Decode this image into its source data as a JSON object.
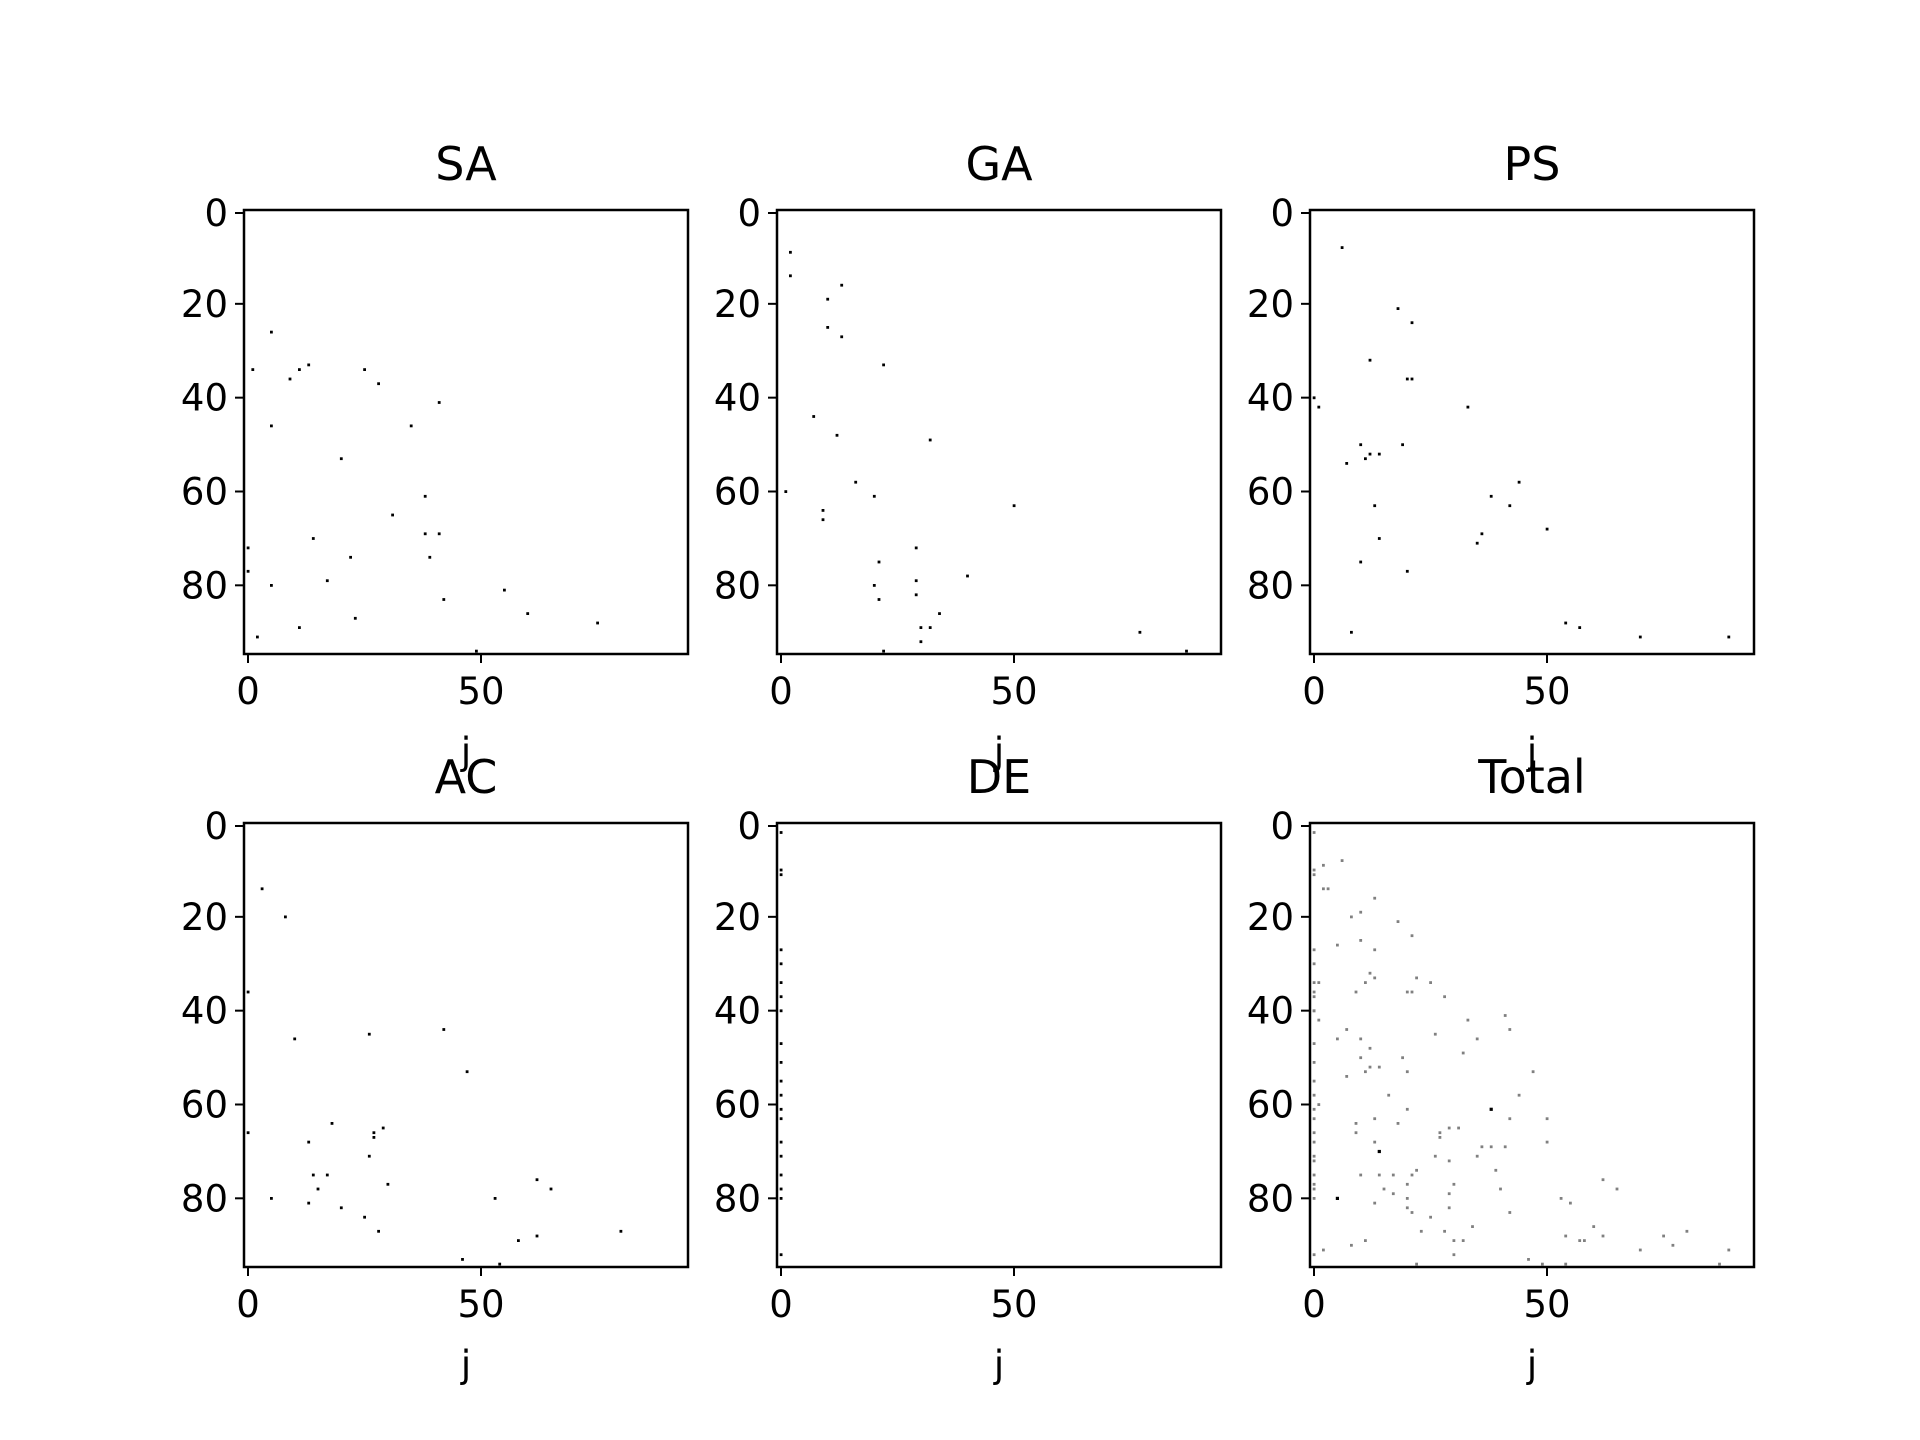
{
  "chart_data": [
    {
      "type": "heatmap",
      "title": "SA",
      "xlabel": "j",
      "ylabel": "",
      "xlim": [
        0,
        94
      ],
      "ylim": [
        94,
        0
      ],
      "xticks": [
        "0",
        "50"
      ],
      "yticks": [
        "0",
        "20",
        "40",
        "60",
        "80"
      ],
      "color": "#000000",
      "points": [
        [
          5,
          26
        ],
        [
          13,
          33
        ],
        [
          11,
          34
        ],
        [
          1,
          34
        ],
        [
          25,
          34
        ],
        [
          9,
          36
        ],
        [
          28,
          37
        ],
        [
          41,
          41
        ],
        [
          5,
          46
        ],
        [
          35,
          46
        ],
        [
          20,
          53
        ],
        [
          38,
          61
        ],
        [
          31,
          65
        ],
        [
          38,
          69
        ],
        [
          41,
          69
        ],
        [
          14,
          70
        ],
        [
          0,
          72
        ],
        [
          39,
          74
        ],
        [
          22,
          74
        ],
        [
          0,
          77
        ],
        [
          5,
          80
        ],
        [
          17,
          79
        ],
        [
          55,
          81
        ],
        [
          42,
          83
        ],
        [
          60,
          86
        ],
        [
          23,
          87
        ],
        [
          75,
          88
        ],
        [
          11,
          89
        ],
        [
          2,
          91
        ],
        [
          49,
          94
        ]
      ]
    },
    {
      "type": "heatmap",
      "title": "GA",
      "xlabel": "j",
      "ylabel": "",
      "xlim": [
        0,
        94
      ],
      "ylim": [
        94,
        0
      ],
      "xticks": [
        "0",
        "50"
      ],
      "yticks": [
        "0",
        "20",
        "40",
        "60",
        "80"
      ],
      "color": "#000000",
      "points": [
        [
          2,
          9
        ],
        [
          2,
          14
        ],
        [
          13,
          16
        ],
        [
          10,
          19
        ],
        [
          10,
          25
        ],
        [
          13,
          27
        ],
        [
          22,
          33
        ],
        [
          7,
          44
        ],
        [
          12,
          48
        ],
        [
          32,
          49
        ],
        [
          16,
          58
        ],
        [
          1,
          60
        ],
        [
          20,
          61
        ],
        [
          50,
          63
        ],
        [
          9,
          64
        ],
        [
          9,
          66
        ],
        [
          29,
          72
        ],
        [
          21,
          75
        ],
        [
          40,
          78
        ],
        [
          29,
          79
        ],
        [
          20,
          80
        ],
        [
          34,
          86
        ],
        [
          21,
          83
        ],
        [
          29,
          82
        ],
        [
          30,
          89
        ],
        [
          32,
          89
        ],
        [
          77,
          90
        ],
        [
          30,
          92
        ],
        [
          22,
          94
        ],
        [
          87,
          94
        ]
      ]
    },
    {
      "type": "heatmap",
      "title": "PS",
      "xlabel": "j",
      "ylabel": "",
      "xlim": [
        0,
        94
      ],
      "ylim": [
        94,
        0
      ],
      "xticks": [
        "0",
        "50"
      ],
      "yticks": [
        "0",
        "20",
        "40",
        "60",
        "80"
      ],
      "color": "#000000",
      "points": [
        [
          6,
          8
        ],
        [
          18,
          21
        ],
        [
          21,
          24
        ],
        [
          12,
          32
        ],
        [
          20,
          36
        ],
        [
          21,
          36
        ],
        [
          0,
          40
        ],
        [
          1,
          42
        ],
        [
          33,
          42
        ],
        [
          10,
          50
        ],
        [
          19,
          50
        ],
        [
          14,
          52
        ],
        [
          11,
          53
        ],
        [
          12,
          52
        ],
        [
          7,
          54
        ],
        [
          44,
          58
        ],
        [
          38,
          61
        ],
        [
          13,
          63
        ],
        [
          42,
          63
        ],
        [
          50,
          68
        ],
        [
          14,
          70
        ],
        [
          36,
          69
        ],
        [
          35,
          71
        ],
        [
          10,
          75
        ],
        [
          20,
          77
        ],
        [
          54,
          88
        ],
        [
          57,
          89
        ],
        [
          8,
          90
        ],
        [
          70,
          91
        ],
        [
          89,
          91
        ]
      ]
    },
    {
      "type": "heatmap",
      "title": "AC",
      "xlabel": "j",
      "ylabel": "",
      "xlim": [
        0,
        94
      ],
      "ylim": [
        94,
        0
      ],
      "xticks": [
        "0",
        "50"
      ],
      "yticks": [
        "0",
        "20",
        "40",
        "60",
        "80"
      ],
      "color": "#000000",
      "points": [
        [
          3,
          14
        ],
        [
          8,
          20
        ],
        [
          0,
          36
        ],
        [
          42,
          44
        ],
        [
          26,
          45
        ],
        [
          10,
          46
        ],
        [
          47,
          53
        ],
        [
          18,
          64
        ],
        [
          29,
          65
        ],
        [
          0,
          66
        ],
        [
          27,
          66
        ],
        [
          13,
          68
        ],
        [
          27,
          67
        ],
        [
          26,
          71
        ],
        [
          14,
          75
        ],
        [
          17,
          75
        ],
        [
          62,
          76
        ],
        [
          30,
          77
        ],
        [
          15,
          78
        ],
        [
          65,
          78
        ],
        [
          5,
          80
        ],
        [
          13,
          81
        ],
        [
          53,
          80
        ],
        [
          20,
          82
        ],
        [
          25,
          84
        ],
        [
          28,
          87
        ],
        [
          80,
          87
        ],
        [
          62,
          88
        ],
        [
          58,
          89
        ],
        [
          46,
          93
        ],
        [
          54,
          94
        ]
      ]
    },
    {
      "type": "heatmap",
      "title": "DE",
      "xlabel": "j",
      "ylabel": "",
      "xlim": [
        0,
        94
      ],
      "ylim": [
        94,
        0
      ],
      "xticks": [
        "0",
        "50"
      ],
      "yticks": [
        "0",
        "20",
        "40",
        "60",
        "80"
      ],
      "color": "#000000",
      "points": [
        [
          0,
          2
        ],
        [
          0,
          10
        ],
        [
          0,
          11
        ],
        [
          0,
          27
        ],
        [
          0,
          30
        ],
        [
          0,
          34
        ],
        [
          0,
          37
        ],
        [
          0,
          40
        ],
        [
          0,
          47
        ],
        [
          0,
          51
        ],
        [
          0,
          55
        ],
        [
          0,
          58
        ],
        [
          0,
          61
        ],
        [
          0,
          63
        ],
        [
          0,
          68
        ],
        [
          0,
          71
        ],
        [
          0,
          75
        ],
        [
          0,
          78
        ],
        [
          0,
          80
        ],
        [
          0,
          92
        ]
      ]
    },
    {
      "type": "heatmap",
      "title": "Total",
      "xlabel": "j",
      "ylabel": "",
      "xlim": [
        0,
        94
      ],
      "ylim": [
        94,
        0
      ],
      "xticks": [
        "0",
        "50"
      ],
      "yticks": [
        "0",
        "20",
        "40",
        "60",
        "80"
      ],
      "color": "#808080",
      "strong_color": "#000000",
      "points": [
        [
          0,
          2
        ],
        [
          0,
          10
        ],
        [
          0,
          11
        ],
        [
          0,
          27
        ],
        [
          0,
          30
        ],
        [
          0,
          34
        ],
        [
          0,
          37
        ],
        [
          0,
          40
        ],
        [
          0,
          47
        ],
        [
          0,
          51
        ],
        [
          0,
          55
        ],
        [
          0,
          58
        ],
        [
          0,
          61
        ],
        [
          0,
          63
        ],
        [
          0,
          68
        ],
        [
          0,
          71
        ],
        [
          0,
          75
        ],
        [
          0,
          78
        ],
        [
          0,
          80
        ],
        [
          0,
          92
        ],
        [
          5,
          26
        ],
        [
          13,
          33
        ],
        [
          11,
          34
        ],
        [
          1,
          34
        ],
        [
          25,
          34
        ],
        [
          9,
          36
        ],
        [
          28,
          37
        ],
        [
          41,
          41
        ],
        [
          5,
          46
        ],
        [
          35,
          46
        ],
        [
          20,
          53
        ],
        [
          31,
          65
        ],
        [
          38,
          69
        ],
        [
          41,
          69
        ],
        [
          14,
          70
        ],
        [
          0,
          72
        ],
        [
          39,
          74
        ],
        [
          22,
          74
        ],
        [
          0,
          77
        ],
        [
          17,
          79
        ],
        [
          55,
          81
        ],
        [
          42,
          83
        ],
        [
          60,
          86
        ],
        [
          23,
          87
        ],
        [
          75,
          88
        ],
        [
          11,
          89
        ],
        [
          2,
          91
        ],
        [
          49,
          94
        ],
        [
          2,
          9
        ],
        [
          2,
          14
        ],
        [
          13,
          16
        ],
        [
          10,
          19
        ],
        [
          10,
          25
        ],
        [
          13,
          27
        ],
        [
          22,
          33
        ],
        [
          7,
          44
        ],
        [
          12,
          48
        ],
        [
          32,
          49
        ],
        [
          16,
          58
        ],
        [
          1,
          60
        ],
        [
          20,
          61
        ],
        [
          50,
          63
        ],
        [
          9,
          64
        ],
        [
          9,
          66
        ],
        [
          29,
          72
        ],
        [
          21,
          75
        ],
        [
          40,
          78
        ],
        [
          29,
          79
        ],
        [
          20,
          80
        ],
        [
          34,
          86
        ],
        [
          21,
          83
        ],
        [
          29,
          82
        ],
        [
          30,
          89
        ],
        [
          32,
          89
        ],
        [
          77,
          90
        ],
        [
          30,
          92
        ],
        [
          22,
          94
        ],
        [
          87,
          94
        ],
        [
          6,
          8
        ],
        [
          18,
          21
        ],
        [
          21,
          24
        ],
        [
          12,
          32
        ],
        [
          20,
          36
        ],
        [
          21,
          36
        ],
        [
          0,
          40
        ],
        [
          1,
          42
        ],
        [
          33,
          42
        ],
        [
          10,
          50
        ],
        [
          19,
          50
        ],
        [
          14,
          52
        ],
        [
          11,
          53
        ],
        [
          12,
          52
        ],
        [
          7,
          54
        ],
        [
          44,
          58
        ],
        [
          13,
          63
        ],
        [
          42,
          63
        ],
        [
          50,
          68
        ],
        [
          36,
          69
        ],
        [
          35,
          71
        ],
        [
          10,
          75
        ],
        [
          20,
          77
        ],
        [
          54,
          88
        ],
        [
          57,
          89
        ],
        [
          8,
          90
        ],
        [
          70,
          91
        ],
        [
          89,
          91
        ],
        [
          3,
          14
        ],
        [
          8,
          20
        ],
        [
          0,
          36
        ],
        [
          42,
          44
        ],
        [
          26,
          45
        ],
        [
          10,
          46
        ],
        [
          47,
          53
        ],
        [
          18,
          64
        ],
        [
          29,
          65
        ],
        [
          0,
          66
        ],
        [
          27,
          66
        ],
        [
          13,
          68
        ],
        [
          27,
          67
        ],
        [
          26,
          71
        ],
        [
          14,
          75
        ],
        [
          17,
          75
        ],
        [
          62,
          76
        ],
        [
          30,
          77
        ],
        [
          15,
          78
        ],
        [
          65,
          78
        ],
        [
          13,
          81
        ],
        [
          53,
          80
        ],
        [
          20,
          82
        ],
        [
          25,
          84
        ],
        [
          28,
          87
        ],
        [
          80,
          87
        ],
        [
          62,
          88
        ],
        [
          58,
          89
        ],
        [
          46,
          93
        ],
        [
          54,
          94
        ]
      ],
      "strong_points": [
        [
          38,
          61
        ],
        [
          14,
          70
        ],
        [
          5,
          80
        ]
      ]
    }
  ]
}
